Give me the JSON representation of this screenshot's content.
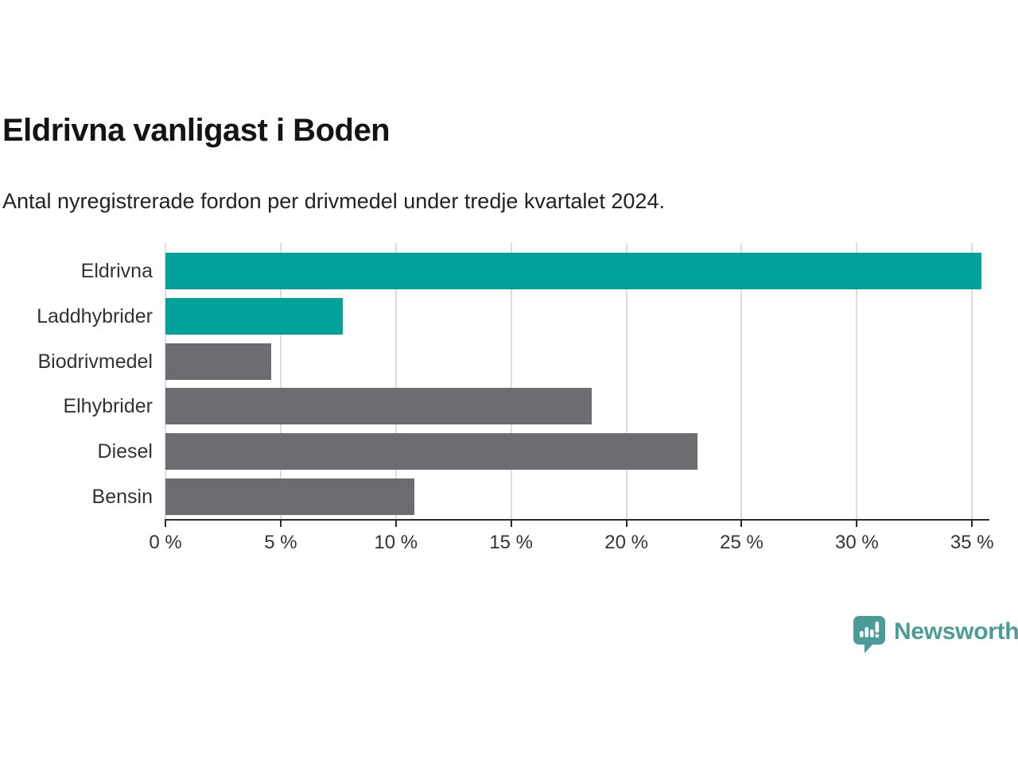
{
  "title": "Eldrivna vanligast i Boden",
  "subtitle": "Antal nyregistrerade fordon per drivmedel under tredje kvartalet 2024.",
  "brand": {
    "name": "Newsworthy",
    "color": "#4A9C96",
    "icon": "newsworthy-speech-bubble-bar-chart-icon"
  },
  "chart_data": {
    "type": "bar",
    "orientation": "horizontal",
    "title": "Eldrivna vanligast i Boden",
    "subtitle": "Antal nyregistrerade fordon per drivmedel under tredje kvartalet 2024.",
    "categories": [
      "Eldrivna",
      "Laddhybrider",
      "Biodrivmedel",
      "Elhybrider",
      "Diesel",
      "Bensin"
    ],
    "values": [
      35.4,
      7.7,
      4.6,
      18.5,
      23.1,
      10.8
    ],
    "unit": "%",
    "bar_colors": [
      "#00A29A",
      "#00A29A",
      "#6C6C71",
      "#6C6C71",
      "#6C6C71",
      "#6C6C71"
    ],
    "highlight_color": "#00A29A",
    "default_color": "#6C6C71",
    "xlim": [
      0,
      35.75
    ],
    "x_ticks": [
      0,
      5,
      10,
      15,
      20,
      25,
      30,
      35
    ],
    "x_tick_labels": [
      "0 %",
      "5 %",
      "10 %",
      "15 %",
      "20 %",
      "25 %",
      "30 %",
      "35 %"
    ],
    "grid": true,
    "gridline_color": "#DCDCDC",
    "axis_color": "#2B2B2B",
    "legend": "none"
  }
}
